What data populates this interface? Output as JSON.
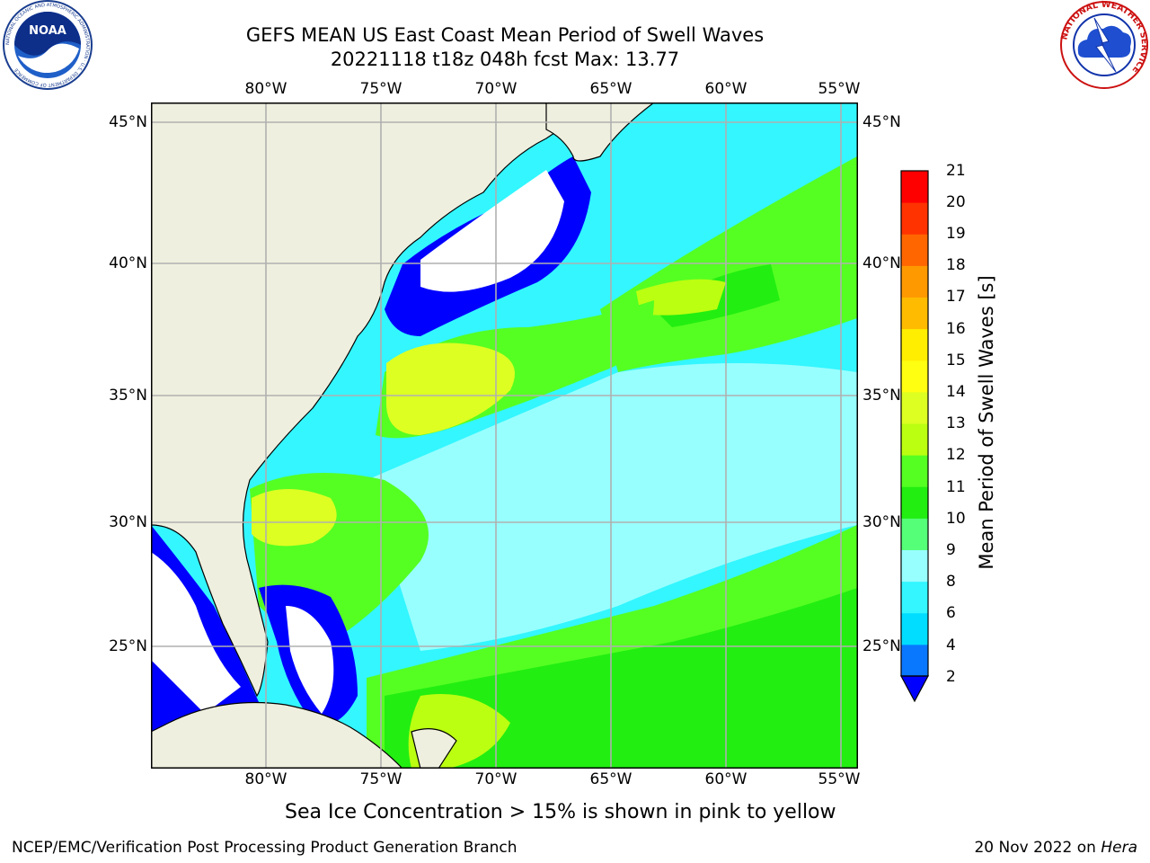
{
  "header": {
    "title": "GEFS MEAN US East Coast Mean Period of Swell Waves",
    "subtitle": "20221118 t18z 048h fcst   Max: 13.77"
  },
  "logos": {
    "noaa": {
      "text": "NOAA",
      "ring_text": "NATIONAL OCEANIC AND ATMOSPHERIC ADMINISTRATION · U.S. DEPARTMENT OF COMMERCE"
    },
    "nws": {
      "ring_text": "NATIONAL WEATHER SERVICE"
    }
  },
  "map": {
    "lon_labels": [
      "80°W",
      "75°W",
      "70°W",
      "65°W",
      "60°W",
      "55°W"
    ],
    "lat_labels": [
      "45°N",
      "40°N",
      "35°N",
      "30°N",
      "25°N"
    ],
    "extent": {
      "lon_min": -85,
      "lon_max": -54.2,
      "lat_min": 20.4,
      "lat_max": 45.8
    },
    "colors": {
      "land": "#efefdf",
      "grid": "#b0b0b0",
      "coast": "#000000",
      "no_data": "#ffffff"
    }
  },
  "colorbar": {
    "label": "Mean Period of Swell Waves [s]",
    "ticks": [
      "21",
      "20",
      "19",
      "18",
      "17",
      "16",
      "15",
      "14",
      "13",
      "12",
      "11",
      "10",
      "9",
      "8",
      "6",
      "4",
      "2"
    ],
    "colors_bottom_to_top": [
      "#0a77ff",
      "#00ddff",
      "#33f6ff",
      "#98ffff",
      "#55ff77",
      "#22ee11",
      "#55ff22",
      "#bbff11",
      "#ddff22",
      "#ffff11",
      "#ffee00",
      "#ffbb00",
      "#ff9900",
      "#ff6600",
      "#ff3300",
      "#ff0000"
    ],
    "extend_color": "#0000ff"
  },
  "caption": "Sea Ice Concentration > 15% is shown in pink to yellow",
  "footer": {
    "left": "NCEP/EMC/Verification Post Processing Product Generation Branch",
    "right_date": "20 Nov 2022 on",
    "right_machine": "Hera"
  }
}
